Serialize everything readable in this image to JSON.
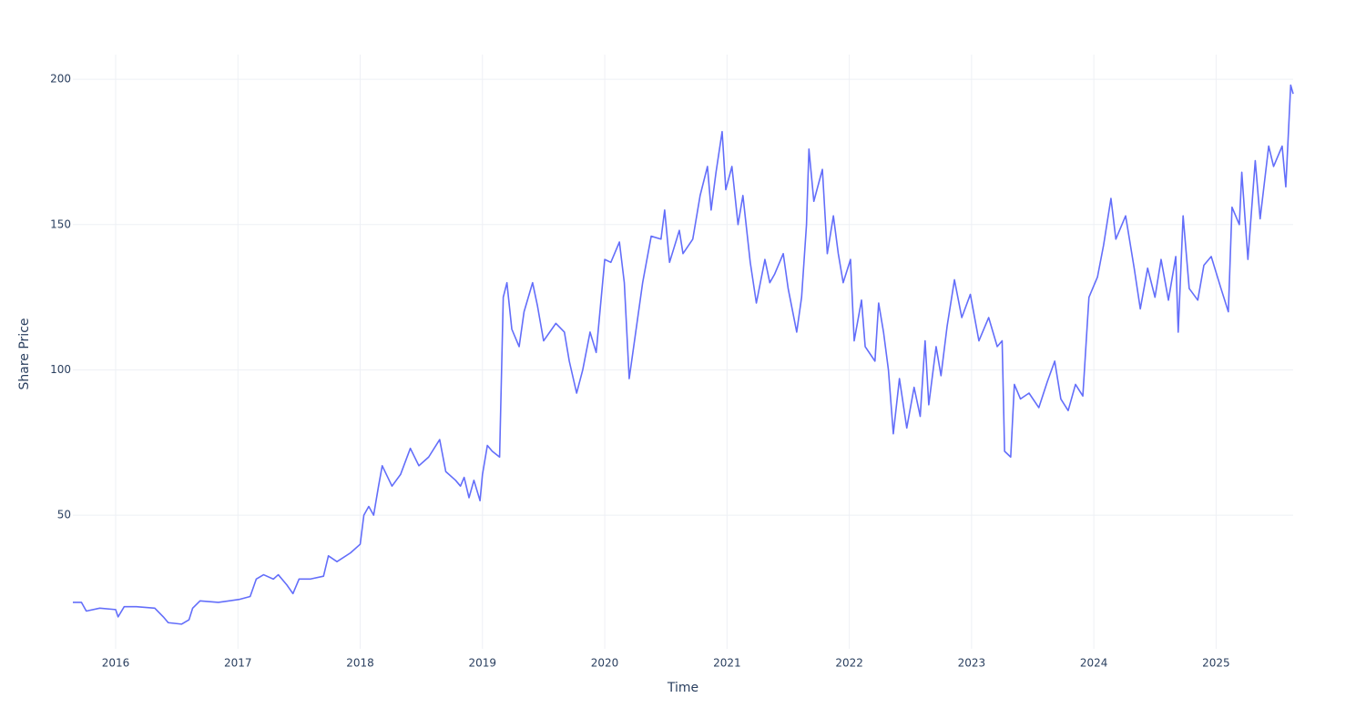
{
  "chart_data": {
    "type": "line",
    "x_label": "Time",
    "y_label": "Share Price",
    "color": "#636efa",
    "grid": true,
    "xlim": [
      2015.65,
      2025.63
    ],
    "ylim": [
      4,
      208.5
    ],
    "xticks": [
      2016,
      2017,
      2018,
      2019,
      2020,
      2021,
      2022,
      2023,
      2024,
      2025
    ],
    "yticks": [
      50,
      100,
      150,
      200
    ],
    "x": [
      2015.65,
      2015.72,
      2015.76,
      2015.87,
      2016.0,
      2016.02,
      2016.07,
      2016.17,
      2016.32,
      2016.39,
      2016.43,
      2016.54,
      2016.6,
      2016.63,
      2016.69,
      2016.84,
      2017.01,
      2017.1,
      2017.15,
      2017.21,
      2017.29,
      2017.33,
      2017.4,
      2017.45,
      2017.5,
      2017.59,
      2017.7,
      2017.74,
      2017.81,
      2017.92,
      2018.0,
      2018.03,
      2018.07,
      2018.11,
      2018.15,
      2018.18,
      2018.26,
      2018.33,
      2018.41,
      2018.48,
      2018.56,
      2018.65,
      2018.7,
      2018.78,
      2018.82,
      2018.85,
      2018.89,
      2018.93,
      2018.98,
      2019.0,
      2019.04,
      2019.08,
      2019.14,
      2019.17,
      2019.2,
      2019.24,
      2019.3,
      2019.34,
      2019.41,
      2019.45,
      2019.5,
      2019.6,
      2019.67,
      2019.71,
      2019.77,
      2019.82,
      2019.88,
      2019.93,
      2020.0,
      2020.05,
      2020.12,
      2020.16,
      2020.2,
      2020.25,
      2020.31,
      2020.38,
      2020.46,
      2020.49,
      2020.53,
      2020.61,
      2020.64,
      2020.72,
      2020.78,
      2020.84,
      2020.87,
      2020.91,
      2020.96,
      2020.99,
      2021.04,
      2021.09,
      2021.13,
      2021.19,
      2021.24,
      2021.31,
      2021.35,
      2021.39,
      2021.46,
      2021.5,
      2021.57,
      2021.61,
      2021.65,
      2021.67,
      2021.71,
      2021.78,
      2021.82,
      2021.87,
      2021.91,
      2021.95,
      2022.01,
      2022.04,
      2022.1,
      2022.13,
      2022.21,
      2022.24,
      2022.28,
      2022.32,
      2022.36,
      2022.41,
      2022.47,
      2022.53,
      2022.58,
      2022.62,
      2022.65,
      2022.71,
      2022.75,
      2022.8,
      2022.86,
      2022.92,
      2022.99,
      2023.06,
      2023.14,
      2023.21,
      2023.25,
      2023.27,
      2023.32,
      2023.35,
      2023.4,
      2023.47,
      2023.55,
      2023.62,
      2023.68,
      2023.73,
      2023.79,
      2023.85,
      2023.91,
      2023.96,
      2024.03,
      2024.08,
      2024.14,
      2024.18,
      2024.26,
      2024.33,
      2024.38,
      2024.44,
      2024.5,
      2024.55,
      2024.61,
      2024.67,
      2024.69,
      2024.73,
      2024.78,
      2024.85,
      2024.9,
      2024.96,
      2025.04,
      2025.1,
      2025.13,
      2025.19,
      2025.21,
      2025.26,
      2025.32,
      2025.36,
      2025.43,
      2025.47,
      2025.54,
      2025.57,
      2025.61,
      2025.63
    ],
    "values": [
      20,
      20,
      17,
      18,
      17.5,
      15,
      18.5,
      18.5,
      18,
      15,
      13,
      12.5,
      14,
      18,
      20.5,
      20,
      21,
      22,
      28,
      29.5,
      28,
      29.5,
      26,
      23,
      28,
      28,
      29,
      36,
      34,
      37,
      40,
      50,
      53,
      50,
      60,
      67,
      60,
      64,
      73,
      67,
      70,
      76,
      65,
      62,
      60,
      63,
      56,
      62,
      55,
      64,
      74,
      72,
      70,
      125,
      130,
      114,
      108,
      120,
      130,
      122,
      110,
      116,
      113,
      103,
      92,
      100,
      113,
      106,
      138,
      137,
      144,
      130,
      97,
      112,
      130,
      146,
      145,
      155,
      137,
      148,
      140,
      145,
      160,
      170,
      155,
      168,
      182,
      162,
      170,
      150,
      160,
      137,
      123,
      138,
      130,
      133,
      140,
      128,
      113,
      125,
      150,
      176,
      158,
      169,
      140,
      153,
      140,
      130,
      138,
      110,
      124,
      108,
      103,
      123,
      113,
      100,
      78,
      97,
      80,
      94,
      84,
      110,
      88,
      108,
      98,
      115,
      131,
      118,
      126,
      110,
      118,
      108,
      110,
      72,
      70,
      95,
      90,
      92,
      87,
      96,
      103,
      90,
      86,
      95,
      91,
      125,
      132,
      143,
      159,
      145,
      153,
      135,
      121,
      135,
      125,
      138,
      124,
      139,
      113,
      153,
      128,
      124,
      136,
      139,
      128,
      120,
      156,
      150,
      168,
      138,
      172,
      152,
      177,
      170,
      177,
      163,
      198,
      195
    ]
  }
}
